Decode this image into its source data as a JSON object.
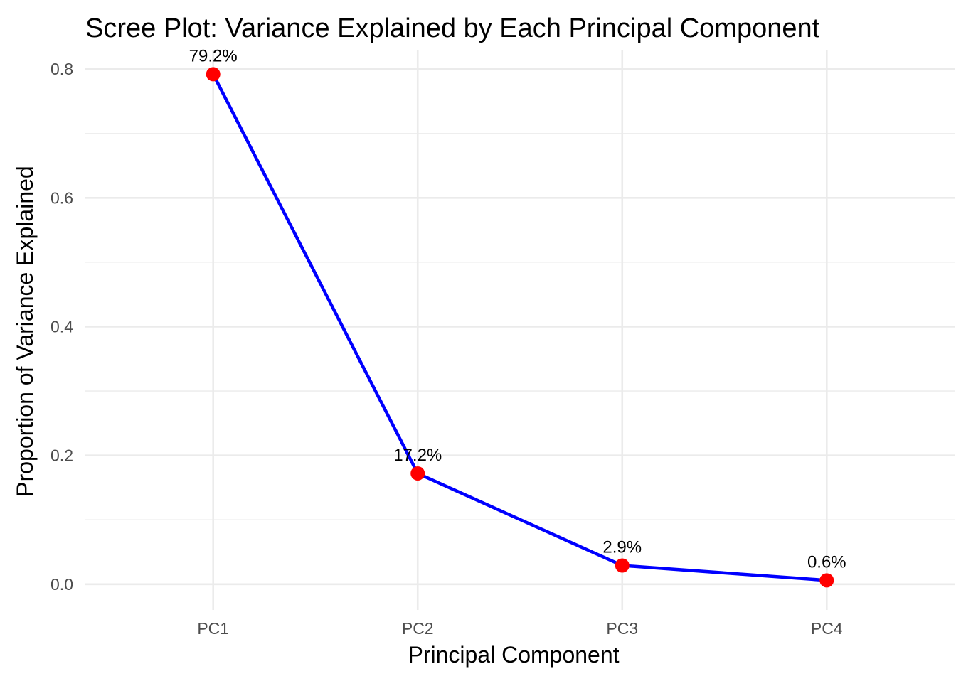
{
  "chart_data": {
    "type": "line",
    "title": "Scree Plot: Variance Explained by Each Principal Component",
    "xlabel": "Principal Component",
    "ylabel": "Proportion of Variance Explained",
    "categories": [
      "PC1",
      "PC2",
      "PC3",
      "PC4"
    ],
    "values": [
      0.792,
      0.172,
      0.029,
      0.006
    ],
    "point_labels": [
      "79.2%",
      "17.2%",
      "2.9%",
      "0.6%"
    ],
    "ylim": [
      -0.04,
      0.83
    ],
    "y_ticks": [
      0.0,
      0.2,
      0.4,
      0.6,
      0.8
    ],
    "y_tick_labels": [
      "0.0",
      "0.2",
      "0.4",
      "0.6",
      "0.8"
    ],
    "y_minor_ticks": [
      0.1,
      0.3,
      0.5,
      0.7
    ],
    "grid": true,
    "legend": "none",
    "line_color": "#0000ff",
    "point_color": "#ff0000",
    "grid_color": "#ebebeb",
    "background": "#ffffff"
  }
}
